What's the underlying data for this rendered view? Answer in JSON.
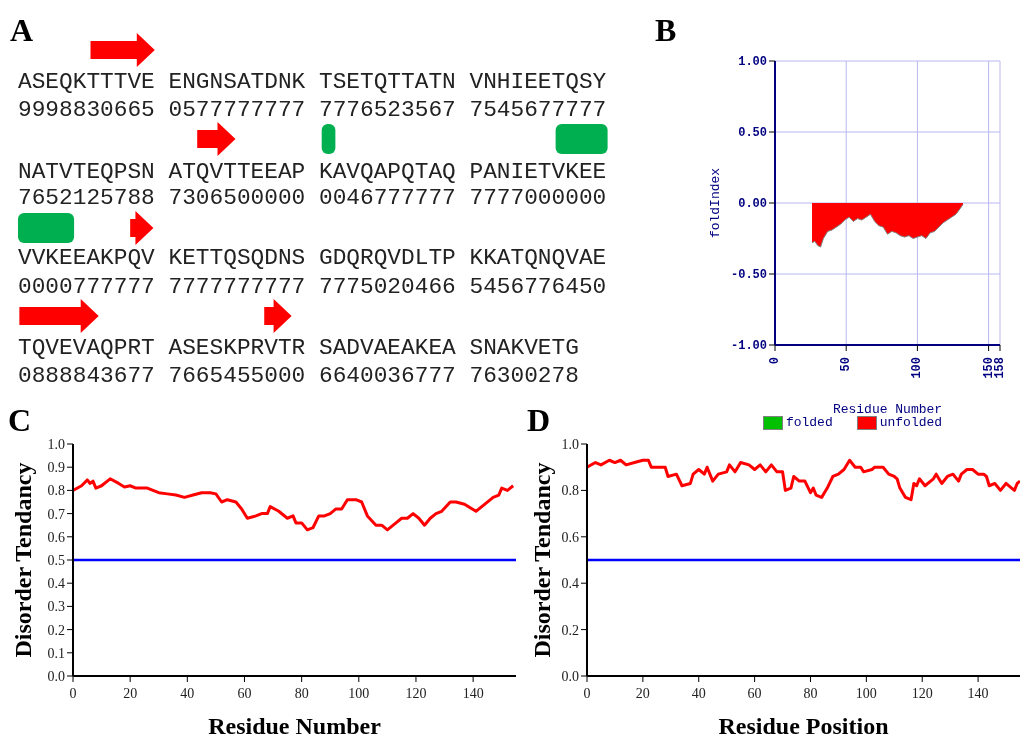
{
  "chart_data": [
    {
      "type": "other",
      "title": "A",
      "annotations": [
        "ASEQKTTTVE ENGNSATDNK TSETQTTATN VNHIEETQSY",
        "9998830665 0577777777 7776523567 7545677777",
        "NATVTEQPSN ATQVTTEEAP KAVQAPQTAQ PANIETVKEE",
        "7652125788 7306500000 0046777777 7777000000",
        "VVKEEAKPQV KETTQSQDNS GDQRQVDLTP KKATQNQVAE",
        "0000777777 7777777777 7775020466 5456776450",
        "TQVEVAQPRT ASESKPRVTR SADVAEAKEA SNAKVETG",
        "0888843677 7665455000 6640036777 76300278"
      ]
    },
    {
      "type": "area",
      "title": "B",
      "xlabel": "Residue Number",
      "ylabel": "foldIndex",
      "xlim": [
        0,
        158
      ],
      "xticks": [
        0,
        50,
        100,
        150,
        158
      ],
      "ylim": [
        -1,
        1
      ],
      "yticks": [
        {
          "value": 1,
          "label": "1.00"
        },
        {
          "value": 0.5,
          "label": "0.50"
        },
        {
          "value": 0,
          "label": "0.00"
        },
        {
          "value": -0.5,
          "label": "-0.50"
        },
        {
          "value": -1,
          "label": "-1.00"
        }
      ],
      "grid": true,
      "legend": "bottom",
      "x": [
        26,
        28,
        30,
        32,
        34,
        37,
        40,
        43,
        46,
        49,
        52,
        55,
        58,
        61,
        64,
        67,
        70,
        73,
        76,
        79,
        82,
        85,
        88,
        91,
        94,
        97,
        100,
        103,
        106,
        109,
        112,
        115,
        118,
        121,
        124,
        127,
        130,
        132
      ],
      "series": [
        {
          "name": "folded",
          "color": "#00c000",
          "values": [
            null,
            null,
            null,
            null,
            null,
            null,
            null,
            null,
            null,
            null,
            null,
            null,
            null,
            null,
            null,
            null,
            null,
            null,
            null,
            null,
            null,
            null,
            null,
            null,
            null,
            null,
            null,
            null,
            null,
            null,
            null,
            null,
            null,
            null,
            null,
            null,
            null,
            null
          ]
        },
        {
          "name": "unfolded",
          "color": "#ff0000",
          "values": [
            -0.28,
            -0.27,
            -0.3,
            -0.31,
            -0.25,
            -0.2,
            -0.19,
            -0.17,
            -0.15,
            -0.12,
            -0.1,
            -0.13,
            -0.11,
            -0.12,
            -0.1,
            -0.08,
            -0.13,
            -0.16,
            -0.17,
            -0.22,
            -0.2,
            -0.21,
            -0.23,
            -0.24,
            -0.23,
            -0.25,
            -0.24,
            -0.23,
            -0.25,
            -0.21,
            -0.2,
            -0.17,
            -0.14,
            -0.12,
            -0.1,
            -0.08,
            -0.04,
            -0.01
          ]
        }
      ]
    },
    {
      "type": "line",
      "title": "C",
      "xlabel": "Residue Number",
      "ylabel": "Disorder Tendancy",
      "xlim": [
        0,
        155
      ],
      "xticks": [
        0,
        20,
        40,
        60,
        80,
        100,
        120,
        140
      ],
      "ylim": [
        0,
        1
      ],
      "yticks": [
        {
          "value": 0,
          "label": "0.0"
        },
        {
          "value": 0.1,
          "label": "0.1"
        },
        {
          "value": 0.2,
          "label": "0.2"
        },
        {
          "value": 0.3,
          "label": "0.3"
        },
        {
          "value": 0.4,
          "label": "0.4"
        },
        {
          "value": 0.5,
          "label": "0.5"
        },
        {
          "value": 0.6,
          "label": "0.6"
        },
        {
          "value": 0.7,
          "label": "0.7"
        },
        {
          "value": 0.8,
          "label": "0.8"
        },
        {
          "value": 0.9,
          "label": "0.9"
        },
        {
          "value": 1,
          "label": "1.0"
        }
      ],
      "ref_lines": [
        {
          "axis": "y",
          "value": 0.5,
          "color": "#0000ff"
        }
      ],
      "x": [
        0,
        3,
        5,
        6,
        7,
        8,
        10,
        13,
        16,
        18,
        20,
        22,
        26,
        28,
        30,
        33,
        36,
        39,
        42,
        45,
        48,
        50,
        52,
        54,
        57,
        59,
        61,
        64,
        66,
        68,
        69,
        72,
        75,
        77,
        78,
        80,
        82,
        84,
        86,
        88,
        90,
        92,
        94,
        96,
        99,
        101,
        103,
        106,
        108,
        110,
        113,
        115,
        117,
        119,
        121,
        123,
        125,
        127,
        129,
        132,
        134,
        137,
        141,
        144,
        147,
        149,
        150,
        152,
        154
      ],
      "series": [
        {
          "color": "#ff0000",
          "values": [
            0.8,
            0.82,
            0.845,
            0.83,
            0.84,
            0.81,
            0.82,
            0.85,
            0.83,
            0.815,
            0.82,
            0.81,
            0.81,
            0.8,
            0.79,
            0.785,
            0.78,
            0.77,
            0.78,
            0.79,
            0.79,
            0.785,
            0.75,
            0.76,
            0.75,
            0.72,
            0.68,
            0.69,
            0.7,
            0.7,
            0.73,
            0.71,
            0.68,
            0.69,
            0.66,
            0.66,
            0.63,
            0.64,
            0.69,
            0.69,
            0.7,
            0.72,
            0.72,
            0.76,
            0.76,
            0.75,
            0.69,
            0.65,
            0.65,
            0.63,
            0.66,
            0.68,
            0.68,
            0.7,
            0.68,
            0.65,
            0.68,
            0.7,
            0.71,
            0.75,
            0.75,
            0.74,
            0.71,
            0.74,
            0.77,
            0.78,
            0.81,
            0.8,
            0.82
          ]
        }
      ]
    },
    {
      "type": "line",
      "title": "D",
      "xlabel": "Residue Position",
      "ylabel": "Disorder Tendancy",
      "xlim": [
        0,
        155
      ],
      "xticks": [
        0,
        20,
        40,
        60,
        80,
        100,
        120,
        140
      ],
      "ylim": [
        0,
        1
      ],
      "yticks": [
        {
          "value": 0,
          "label": "0.0"
        },
        {
          "value": 0.2,
          "label": "0.2"
        },
        {
          "value": 0.4,
          "label": "0.4"
        },
        {
          "value": 0.6,
          "label": "0.6"
        },
        {
          "value": 0.8,
          "label": "0.8"
        },
        {
          "value": 1,
          "label": "1.0"
        }
      ],
      "ref_lines": [
        {
          "axis": "y",
          "value": 0.5,
          "color": "#0000ff"
        }
      ],
      "x": [
        0,
        3,
        5,
        8,
        10,
        12,
        14,
        17,
        20,
        22,
        23,
        28,
        29,
        32,
        34,
        37,
        38,
        40,
        42,
        43,
        45,
        47,
        50,
        51,
        53,
        55,
        58,
        60,
        62,
        64,
        66,
        68,
        70,
        71,
        73,
        74,
        76,
        78,
        80,
        81,
        82,
        84,
        86,
        88,
        90,
        92,
        94,
        96,
        98,
        99,
        102,
        103,
        106,
        108,
        110,
        111,
        112,
        114,
        116,
        117,
        118,
        119,
        121,
        123,
        124,
        125,
        127,
        129,
        131,
        133,
        134,
        136,
        138,
        140,
        142,
        143,
        144,
        146,
        148,
        150,
        152,
        153,
        154,
        155
      ],
      "series": [
        {
          "color": "#ff0000",
          "values": [
            0.9,
            0.92,
            0.91,
            0.93,
            0.92,
            0.93,
            0.91,
            0.92,
            0.93,
            0.93,
            0.9,
            0.9,
            0.86,
            0.87,
            0.82,
            0.83,
            0.87,
            0.89,
            0.87,
            0.9,
            0.84,
            0.87,
            0.88,
            0.91,
            0.88,
            0.92,
            0.91,
            0.89,
            0.91,
            0.88,
            0.91,
            0.88,
            0.88,
            0.8,
            0.81,
            0.86,
            0.84,
            0.84,
            0.79,
            0.81,
            0.78,
            0.77,
            0.81,
            0.86,
            0.87,
            0.89,
            0.93,
            0.9,
            0.9,
            0.88,
            0.89,
            0.9,
            0.9,
            0.87,
            0.86,
            0.85,
            0.81,
            0.77,
            0.76,
            0.83,
            0.82,
            0.85,
            0.82,
            0.84,
            0.85,
            0.87,
            0.83,
            0.86,
            0.87,
            0.84,
            0.87,
            0.89,
            0.89,
            0.87,
            0.87,
            0.86,
            0.82,
            0.83,
            0.8,
            0.83,
            0.81,
            0.8,
            0.83,
            0.84
          ]
        }
      ]
    }
  ]
}
